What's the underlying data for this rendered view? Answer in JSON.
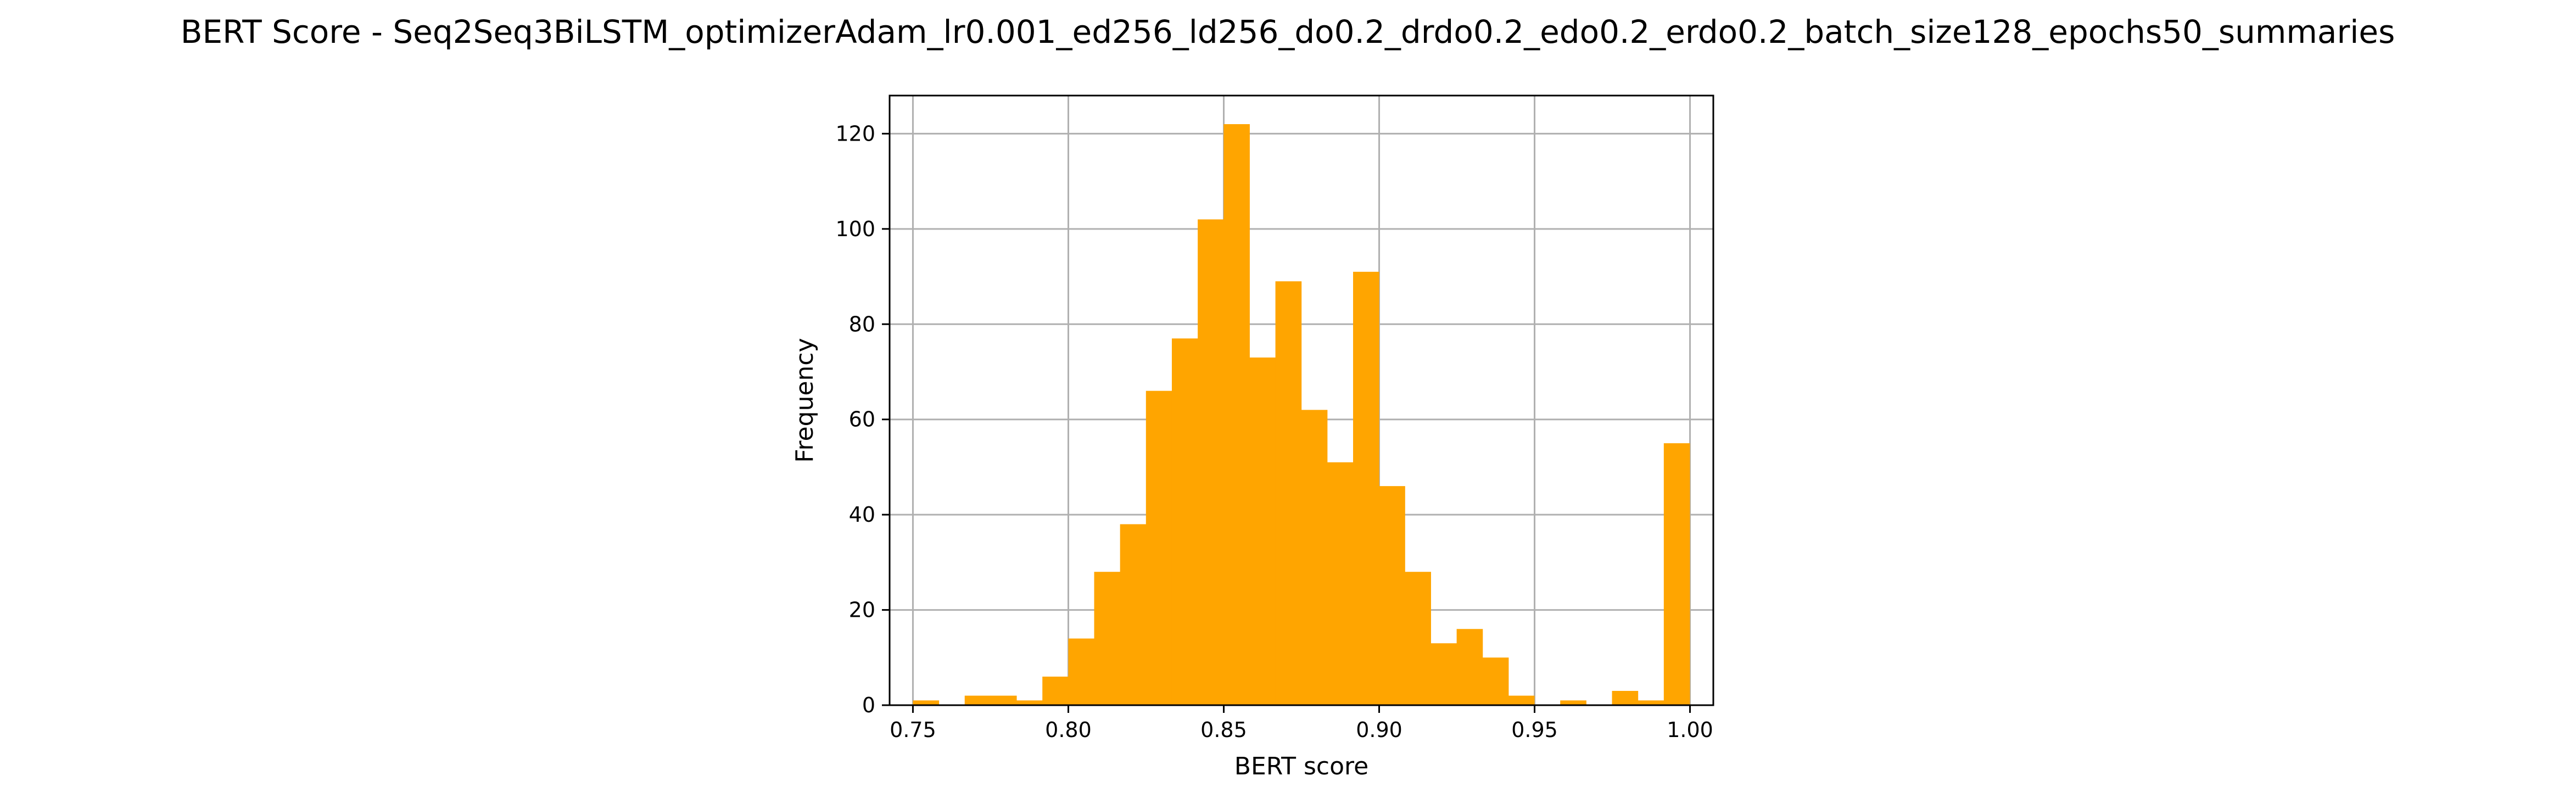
{
  "chart_data": {
    "type": "bar",
    "title": "BERT Score - Seq2Seq3BiLSTM_optimizerAdam_lr0.001_ed256_ld256_do0.2_drdo0.2_edo0.2_erdo0.2_batch_size128_epochs50_summaries",
    "xlabel": "BERT score",
    "ylabel": "Frequency",
    "xlim": [
      0.7425,
      1.0075
    ],
    "ylim": [
      0,
      128
    ],
    "grid": true,
    "bar_color": "#ffa500",
    "xticks": [
      0.75,
      0.8,
      0.85,
      0.9,
      0.95,
      1.0
    ],
    "xtick_labels": [
      "0.75",
      "0.80",
      "0.85",
      "0.90",
      "0.95",
      "1.00"
    ],
    "yticks": [
      0,
      20,
      40,
      60,
      80,
      100,
      120
    ],
    "ytick_labels": [
      "0",
      "20",
      "40",
      "60",
      "80",
      "100",
      "120"
    ],
    "bin_start": 0.75,
    "bin_width": 0.00833,
    "values": [
      1,
      0,
      2,
      2,
      1,
      6,
      14,
      28,
      38,
      66,
      77,
      102,
      122,
      73,
      89,
      62,
      51,
      91,
      46,
      28,
      13,
      16,
      10,
      2,
      0,
      1,
      0,
      3,
      1,
      55
    ]
  }
}
